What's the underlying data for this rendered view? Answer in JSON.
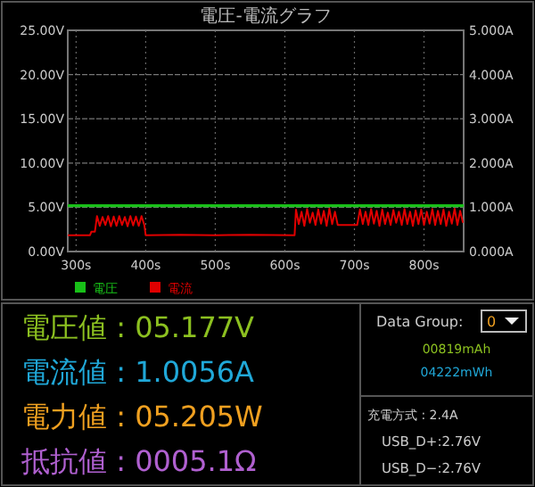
{
  "chart_data": [
    {
      "type": "line",
      "title": "電圧-電流グラフ",
      "xlim": [
        288,
        857
      ],
      "xticks": [
        {
          "value": 300,
          "label": "300s"
        },
        {
          "value": 400,
          "label": "400s"
        },
        {
          "value": 500,
          "label": "500s"
        },
        {
          "value": 600,
          "label": "600s"
        },
        {
          "value": 700,
          "label": "700s"
        },
        {
          "value": 800,
          "label": "800s"
        }
      ],
      "ylim": [
        0,
        25
      ],
      "yticks": [
        {
          "value": 0,
          "label": "0.00V"
        },
        {
          "value": 5,
          "label": "5.00V"
        },
        {
          "value": 10,
          "label": "10.00V"
        },
        {
          "value": 15,
          "label": "15.00V"
        },
        {
          "value": 20,
          "label": "20.00V"
        },
        {
          "value": 25,
          "label": "25.00V"
        }
      ],
      "y2lim": [
        0,
        5
      ],
      "y2ticks": [
        {
          "value": 0,
          "label": "0.000A"
        },
        {
          "value": 1,
          "label": "1.000A"
        },
        {
          "value": 2,
          "label": "2.000A"
        },
        {
          "value": 3,
          "label": "3.000A"
        },
        {
          "value": 4,
          "label": "4.000A"
        },
        {
          "value": 5,
          "label": "5.000A"
        }
      ],
      "grid": true,
      "legend": "bottom",
      "marker": "none",
      "line_style": "solid",
      "series": [
        {
          "name": "電圧",
          "color": "#18c018",
          "x": [
            288,
            857
          ],
          "values": [
            5.18,
            5.18
          ]
        },
        {
          "name": "電流",
          "color": "#e00000",
          "axis": "y2",
          "x": [
            288,
            320,
            322,
            327,
            330,
            334,
            338,
            342,
            346,
            350,
            354,
            358,
            362,
            366,
            370,
            374,
            378,
            382,
            386,
            390,
            394,
            398,
            400,
            450,
            500,
            550,
            614,
            616,
            620,
            624,
            628,
            632,
            636,
            640,
            644,
            648,
            652,
            656,
            660,
            664,
            668,
            672,
            676,
            680,
            704,
            708,
            712,
            716,
            720,
            724,
            728,
            732,
            736,
            740,
            744,
            748,
            752,
            756,
            760,
            764,
            768,
            772,
            776,
            780,
            784,
            788,
            792,
            796,
            800,
            804,
            808,
            812,
            816,
            820,
            824,
            828,
            832,
            836,
            840,
            844,
            848,
            852,
            856
          ],
          "values": [
            0.37,
            0.37,
            0.45,
            0.45,
            0.8,
            0.58,
            0.78,
            0.6,
            0.8,
            0.57,
            0.79,
            0.58,
            0.8,
            0.6,
            0.78,
            0.57,
            0.8,
            0.59,
            0.79,
            0.58,
            0.8,
            0.6,
            0.37,
            0.38,
            0.37,
            0.38,
            0.37,
            0.95,
            0.62,
            0.9,
            0.58,
            0.96,
            0.65,
            0.88,
            0.6,
            0.95,
            0.63,
            0.92,
            0.58,
            0.97,
            0.62,
            0.9,
            0.6,
            0.6,
            0.6,
            0.95,
            0.62,
            0.9,
            0.6,
            0.96,
            0.63,
            0.92,
            0.58,
            0.95,
            0.62,
            0.88,
            0.6,
            0.94,
            0.65,
            0.9,
            0.6,
            0.96,
            0.62,
            0.9,
            0.58,
            0.93,
            0.62,
            0.95,
            0.6,
            0.9,
            0.63,
            0.96,
            0.6,
            0.92,
            0.62,
            0.95,
            0.58,
            0.9,
            0.63,
            0.97,
            0.6,
            0.92,
            0.65
          ]
        }
      ]
    },
    {
      "type": "other",
      "annotations": [
        "電圧値 : 05.177V",
        "電流値 : 1.0056A",
        "電力値 : 05.205W",
        "抵抗値 : 0005.1Ω",
        "Data Group:",
        "0",
        "00819mAh",
        "04222mWh",
        "充電方式 : 2.4A",
        "USB_D+:2.76V",
        "USB_D−:2.76V"
      ]
    }
  ]
}
